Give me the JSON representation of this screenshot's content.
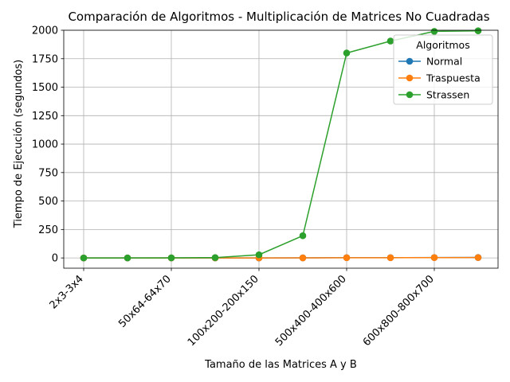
{
  "chart_data": {
    "type": "line",
    "title": "Comparación de Algoritmos - Multiplicación de Matrices No Cuadradas",
    "xlabel": "Tamaño de las Matrices A y B",
    "ylabel": "Tiempo de Ejecución (segundos)",
    "x_count": 10,
    "x_tick_indices": [
      0,
      2,
      4,
      6,
      8
    ],
    "x_tick_labels": [
      "2x3-3x4",
      "50x64-64x70",
      "100x200-200x150",
      "500x400-400x600",
      "600x800-800x700"
    ],
    "ylim": [
      -90,
      2000
    ],
    "y_ticks": [
      0,
      250,
      500,
      750,
      1000,
      1250,
      1500,
      1750,
      2000
    ],
    "grid": true,
    "legend_title": "Algoritmos",
    "legend_position": "top-right",
    "series": [
      {
        "name": "Normal",
        "color": "#1f77b4",
        "values": [
          0,
          0,
          0.01,
          0.05,
          0.3,
          0.8,
          2.5,
          2.5,
          3.5,
          4
        ]
      },
      {
        "name": "Traspuesta",
        "color": "#ff7f0e",
        "values": [
          0,
          0,
          0.01,
          0.04,
          0.25,
          0.7,
          2,
          2,
          3,
          3.5
        ]
      },
      {
        "name": "Strassen",
        "color": "#2ca02c",
        "values": [
          0,
          0.1,
          1,
          3,
          28,
          195,
          1800,
          1905,
          1990,
          1995
        ]
      }
    ]
  }
}
